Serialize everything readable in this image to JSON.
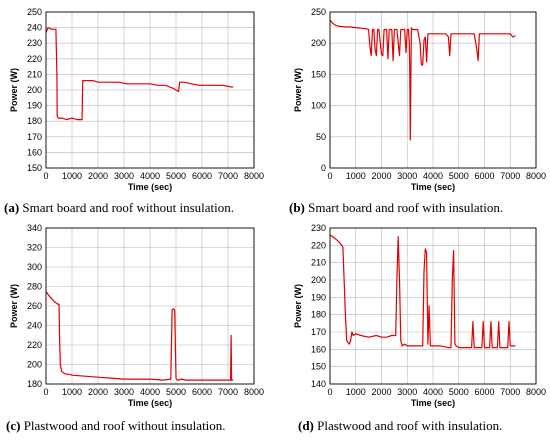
{
  "chart_data": [
    {
      "type": "line",
      "caption_letter": "(a)",
      "caption_text": " Smart board and roof without insulation.",
      "xlabel": "Time (sec)",
      "ylabel": "Power (W)",
      "xlim": [
        0,
        8000
      ],
      "ylim": [
        150,
        250
      ],
      "xticks": [
        0,
        1000,
        2000,
        3000,
        4000,
        5000,
        6000,
        7000,
        8000
      ],
      "yticks": [
        150,
        160,
        170,
        180,
        190,
        200,
        210,
        220,
        230,
        240,
        250
      ],
      "grid": true,
      "color": "#e00000",
      "series": [
        {
          "x": [
            0,
            80,
            200,
            380,
            420,
            430,
            480,
            600,
            800,
            1000,
            1200,
            1390,
            1400,
            1410,
            1600,
            1800,
            2000,
            2200,
            2500,
            2800,
            3100,
            3400,
            3700,
            4000,
            4300,
            4600,
            4900,
            5100,
            5120,
            5140,
            5300,
            5600,
            5900,
            6200,
            6500,
            6800,
            7100,
            7200
          ],
          "y": [
            237,
            240,
            239,
            239,
            210,
            183,
            182,
            182,
            181,
            182,
            181,
            181,
            195,
            206,
            206,
            206,
            205,
            205,
            205,
            205,
            204,
            204,
            204,
            204,
            203,
            203,
            201,
            199,
            202,
            205,
            205,
            204,
            203,
            203,
            203,
            203,
            202,
            202
          ]
        }
      ]
    },
    {
      "type": "line",
      "caption_letter": "(b)",
      "caption_text": " Smart board and roof with insulation.",
      "xlabel": "Time (sec)",
      "ylabel": "Power (W)",
      "xlim": [
        0,
        8000
      ],
      "ylim": [
        0,
        250
      ],
      "xticks": [
        0,
        1000,
        2000,
        3000,
        4000,
        5000,
        6000,
        7000,
        8000
      ],
      "yticks": [
        0,
        50,
        100,
        150,
        200,
        250
      ],
      "grid": true,
      "color": "#e00000",
      "series": [
        {
          "x": [
            0,
            100,
            250,
            400,
            600,
            800,
            1000,
            1200,
            1400,
            1500,
            1550,
            1600,
            1650,
            1700,
            1750,
            1800,
            1850,
            1900,
            2000,
            2050,
            2100,
            2200,
            2250,
            2300,
            2400,
            2450,
            2500,
            2550,
            2600,
            2700,
            2750,
            2800,
            2900,
            2950,
            3000,
            3050,
            3080,
            3100,
            3120,
            3140,
            3160,
            3180,
            3200,
            3300,
            3400,
            3500,
            3550,
            3600,
            3650,
            3700,
            3750,
            3800,
            3850,
            3900,
            4000,
            4200,
            4500,
            4600,
            4650,
            4700,
            4750,
            4800,
            5000,
            5300,
            5600,
            5700,
            5750,
            5800,
            5850,
            5900,
            6200,
            6600,
            7000,
            7100,
            7200
          ],
          "y": [
            237,
            232,
            228,
            227,
            226,
            226,
            225,
            224,
            223,
            222,
            195,
            180,
            222,
            222,
            190,
            180,
            222,
            222,
            182,
            180,
            222,
            222,
            175,
            222,
            222,
            172,
            222,
            222,
            222,
            180,
            222,
            222,
            222,
            185,
            222,
            222,
            200,
            150,
            45,
            150,
            225,
            222,
            222,
            222,
            222,
            200,
            165,
            165,
            205,
            210,
            170,
            215,
            215,
            215,
            215,
            215,
            215,
            210,
            180,
            215,
            215,
            215,
            215,
            215,
            215,
            190,
            172,
            215,
            215,
            215,
            215,
            215,
            215,
            210,
            212
          ]
        }
      ]
    },
    {
      "type": "line",
      "caption_letter": "(c)",
      "caption_text": " Plastwood and roof without insulation.",
      "xlabel": "Time (sec)",
      "ylabel": "Power (W)",
      "xlim": [
        0,
        8000
      ],
      "ylim": [
        180,
        340
      ],
      "xticks": [
        0,
        1000,
        2000,
        3000,
        4000,
        5000,
        6000,
        7000,
        8000
      ],
      "yticks": [
        180,
        200,
        220,
        240,
        260,
        280,
        300,
        320,
        340
      ],
      "grid": true,
      "color": "#e00000",
      "series": [
        {
          "x": [
            0,
            100,
            200,
            300,
            400,
            450,
            500,
            520,
            550,
            600,
            700,
            800,
            900,
            1000,
            1500,
            2000,
            2500,
            3000,
            3500,
            4000,
            4500,
            4800,
            4850,
            4900,
            4950,
            5000,
            5050,
            5100,
            5200,
            5400,
            6000,
            6500,
            7000,
            7100,
            7120,
            7140,
            7200
          ],
          "y": [
            275,
            271,
            268,
            265,
            263,
            262,
            262,
            230,
            200,
            193,
            191,
            190,
            190,
            189,
            188,
            187,
            186,
            185,
            185,
            185,
            184,
            185,
            256,
            257,
            256,
            186,
            184,
            184,
            185,
            184,
            184,
            184,
            184,
            184,
            230,
            184,
            184
          ]
        }
      ]
    },
    {
      "type": "line",
      "caption_letter": "(d)",
      "caption_text": " Plastwood and roof with insulation.",
      "xlabel": "Time (sec)",
      "ylabel": "Power (W)",
      "xlim": [
        0,
        8000
      ],
      "ylim": [
        140,
        230
      ],
      "xticks": [
        0,
        1000,
        2000,
        3000,
        4000,
        5000,
        6000,
        7000,
        8000
      ],
      "yticks": [
        140,
        150,
        160,
        170,
        180,
        190,
        200,
        210,
        220,
        230
      ],
      "grid": true,
      "color": "#e00000",
      "series": [
        {
          "x": [
            0,
            100,
            200,
            350,
            500,
            600,
            650,
            700,
            750,
            800,
            850,
            900,
            1000,
            1200,
            1500,
            1800,
            2000,
            2200,
            2400,
            2550,
            2600,
            2650,
            2700,
            2750,
            2800,
            2900,
            3000,
            3200,
            3400,
            3600,
            3650,
            3700,
            3750,
            3800,
            3850,
            3900,
            3950,
            4000,
            4100,
            4300,
            4600,
            4700,
            4750,
            4800,
            4850,
            4900,
            5000,
            5300,
            5500,
            5550,
            5600,
            5800,
            5900,
            5950,
            6000,
            6200,
            6250,
            6300,
            6500,
            6550,
            6600,
            6800,
            6900,
            6950,
            7000,
            7100,
            7200
          ],
          "y": [
            226,
            225,
            224,
            222,
            219,
            180,
            165,
            164,
            163,
            165,
            170,
            168,
            169,
            168,
            167,
            168,
            167,
            167,
            168,
            168,
            200,
            225,
            200,
            165,
            162,
            163,
            162,
            162,
            162,
            162,
            205,
            218,
            216,
            163,
            185,
            162,
            162,
            162,
            162,
            162,
            161,
            161,
            200,
            217,
            163,
            162,
            161,
            161,
            161,
            176,
            161,
            161,
            161,
            176,
            161,
            161,
            176,
            161,
            161,
            176,
            161,
            161,
            161,
            176,
            162,
            162,
            162
          ]
        }
      ]
    }
  ]
}
